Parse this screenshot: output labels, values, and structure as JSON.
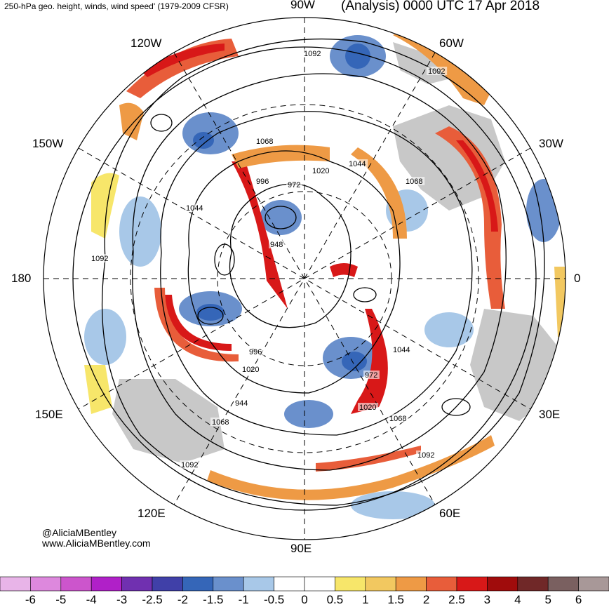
{
  "header": {
    "left_title": "250-hPa geo. height, winds, wind speed' (1979-2009 CFSR)",
    "right_title": "(Analysis) 0000 UTC 17 Apr 2018"
  },
  "longitude_labels": {
    "top": "90W",
    "bottom": "90E",
    "left": "180",
    "right": "0",
    "upper_left": "120W",
    "upper_right": "60W",
    "mid_upper_left": "150W",
    "mid_upper_right": "30W",
    "mid_lower_left": "150E",
    "mid_lower_right": "30E",
    "lower_left": "120E",
    "lower_right": "60E"
  },
  "contour_labels": [
    "1092",
    "1092",
    "1068",
    "1020",
    "1044",
    "1068",
    "996",
    "972",
    "1044",
    "948",
    "1092",
    "996",
    "1020",
    "944",
    "1068",
    "1092",
    "1044",
    "972",
    "1020",
    "1068",
    "1092"
  ],
  "credits": {
    "handle": "@AliciaMBentley",
    "website": "www.AliciaMBentley.com"
  },
  "colorbar": {
    "labels": [
      "-6",
      "-5",
      "-4",
      "-3",
      "-2.5",
      "-2",
      "-1.5",
      "-1",
      "-0.5",
      "0",
      "0.5",
      "1",
      "1.5",
      "2",
      "2.5",
      "3",
      "4",
      "5",
      "6"
    ],
    "colors": [
      "#e8b4e8",
      "#dd88dd",
      "#cc55cc",
      "#b020c8",
      "#7030b0",
      "#4040a8",
      "#3566b8",
      "#6a90cc",
      "#a8c8e8",
      "#ffffff",
      "#ffffff",
      "#f7e66a",
      "#f2c860",
      "#ee9a45",
      "#e85d3a",
      "#d81818",
      "#a00c0c",
      "#702828",
      "#7a6060",
      "#a89898"
    ]
  },
  "colors": {
    "land": "#c8c8c8",
    "contour": "#000000"
  }
}
